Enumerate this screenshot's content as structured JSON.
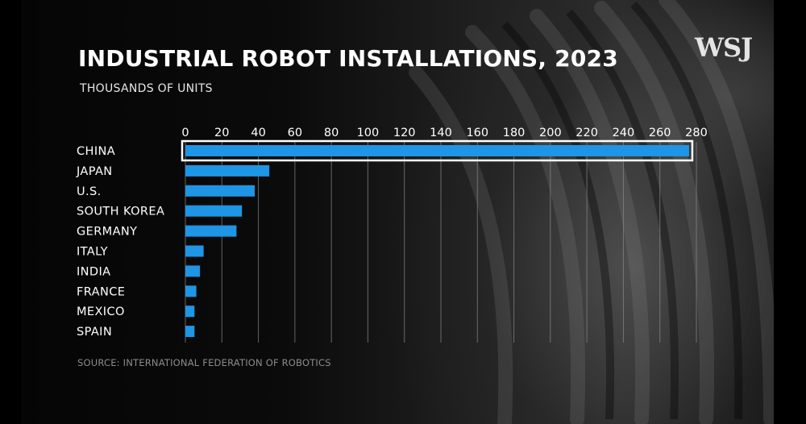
{
  "brand": {
    "logo_text": "WSJ"
  },
  "colors": {
    "bar": "#1f95e6",
    "highlight_outline": "#ffffff",
    "gridline": "#8a8a8a",
    "text": "#ffffff",
    "source_text": "#8c8c8c"
  },
  "source": "SOURCE: INTERNATIONAL FEDERATION OF ROBOTICS",
  "chart_data": {
    "type": "bar",
    "orientation": "horizontal",
    "title": "INDUSTRIAL ROBOT INSTALLATIONS, 2023",
    "subtitle": "THOUSANDS OF UNITS",
    "categories": [
      "CHINA",
      "JAPAN",
      "U.S.",
      "SOUTH KOREA",
      "GERMANY",
      "ITALY",
      "INDIA",
      "FRANCE",
      "MEXICO",
      "SPAIN"
    ],
    "values": [
      276,
      46,
      38,
      31,
      28,
      10,
      8,
      6,
      5,
      5
    ],
    "xlim": [
      0,
      280
    ],
    "xticks": [
      0,
      20,
      40,
      60,
      80,
      100,
      120,
      140,
      160,
      180,
      200,
      220,
      240,
      260,
      280
    ],
    "axis_position": "top",
    "grid": true,
    "highlighted_category": "CHINA"
  }
}
